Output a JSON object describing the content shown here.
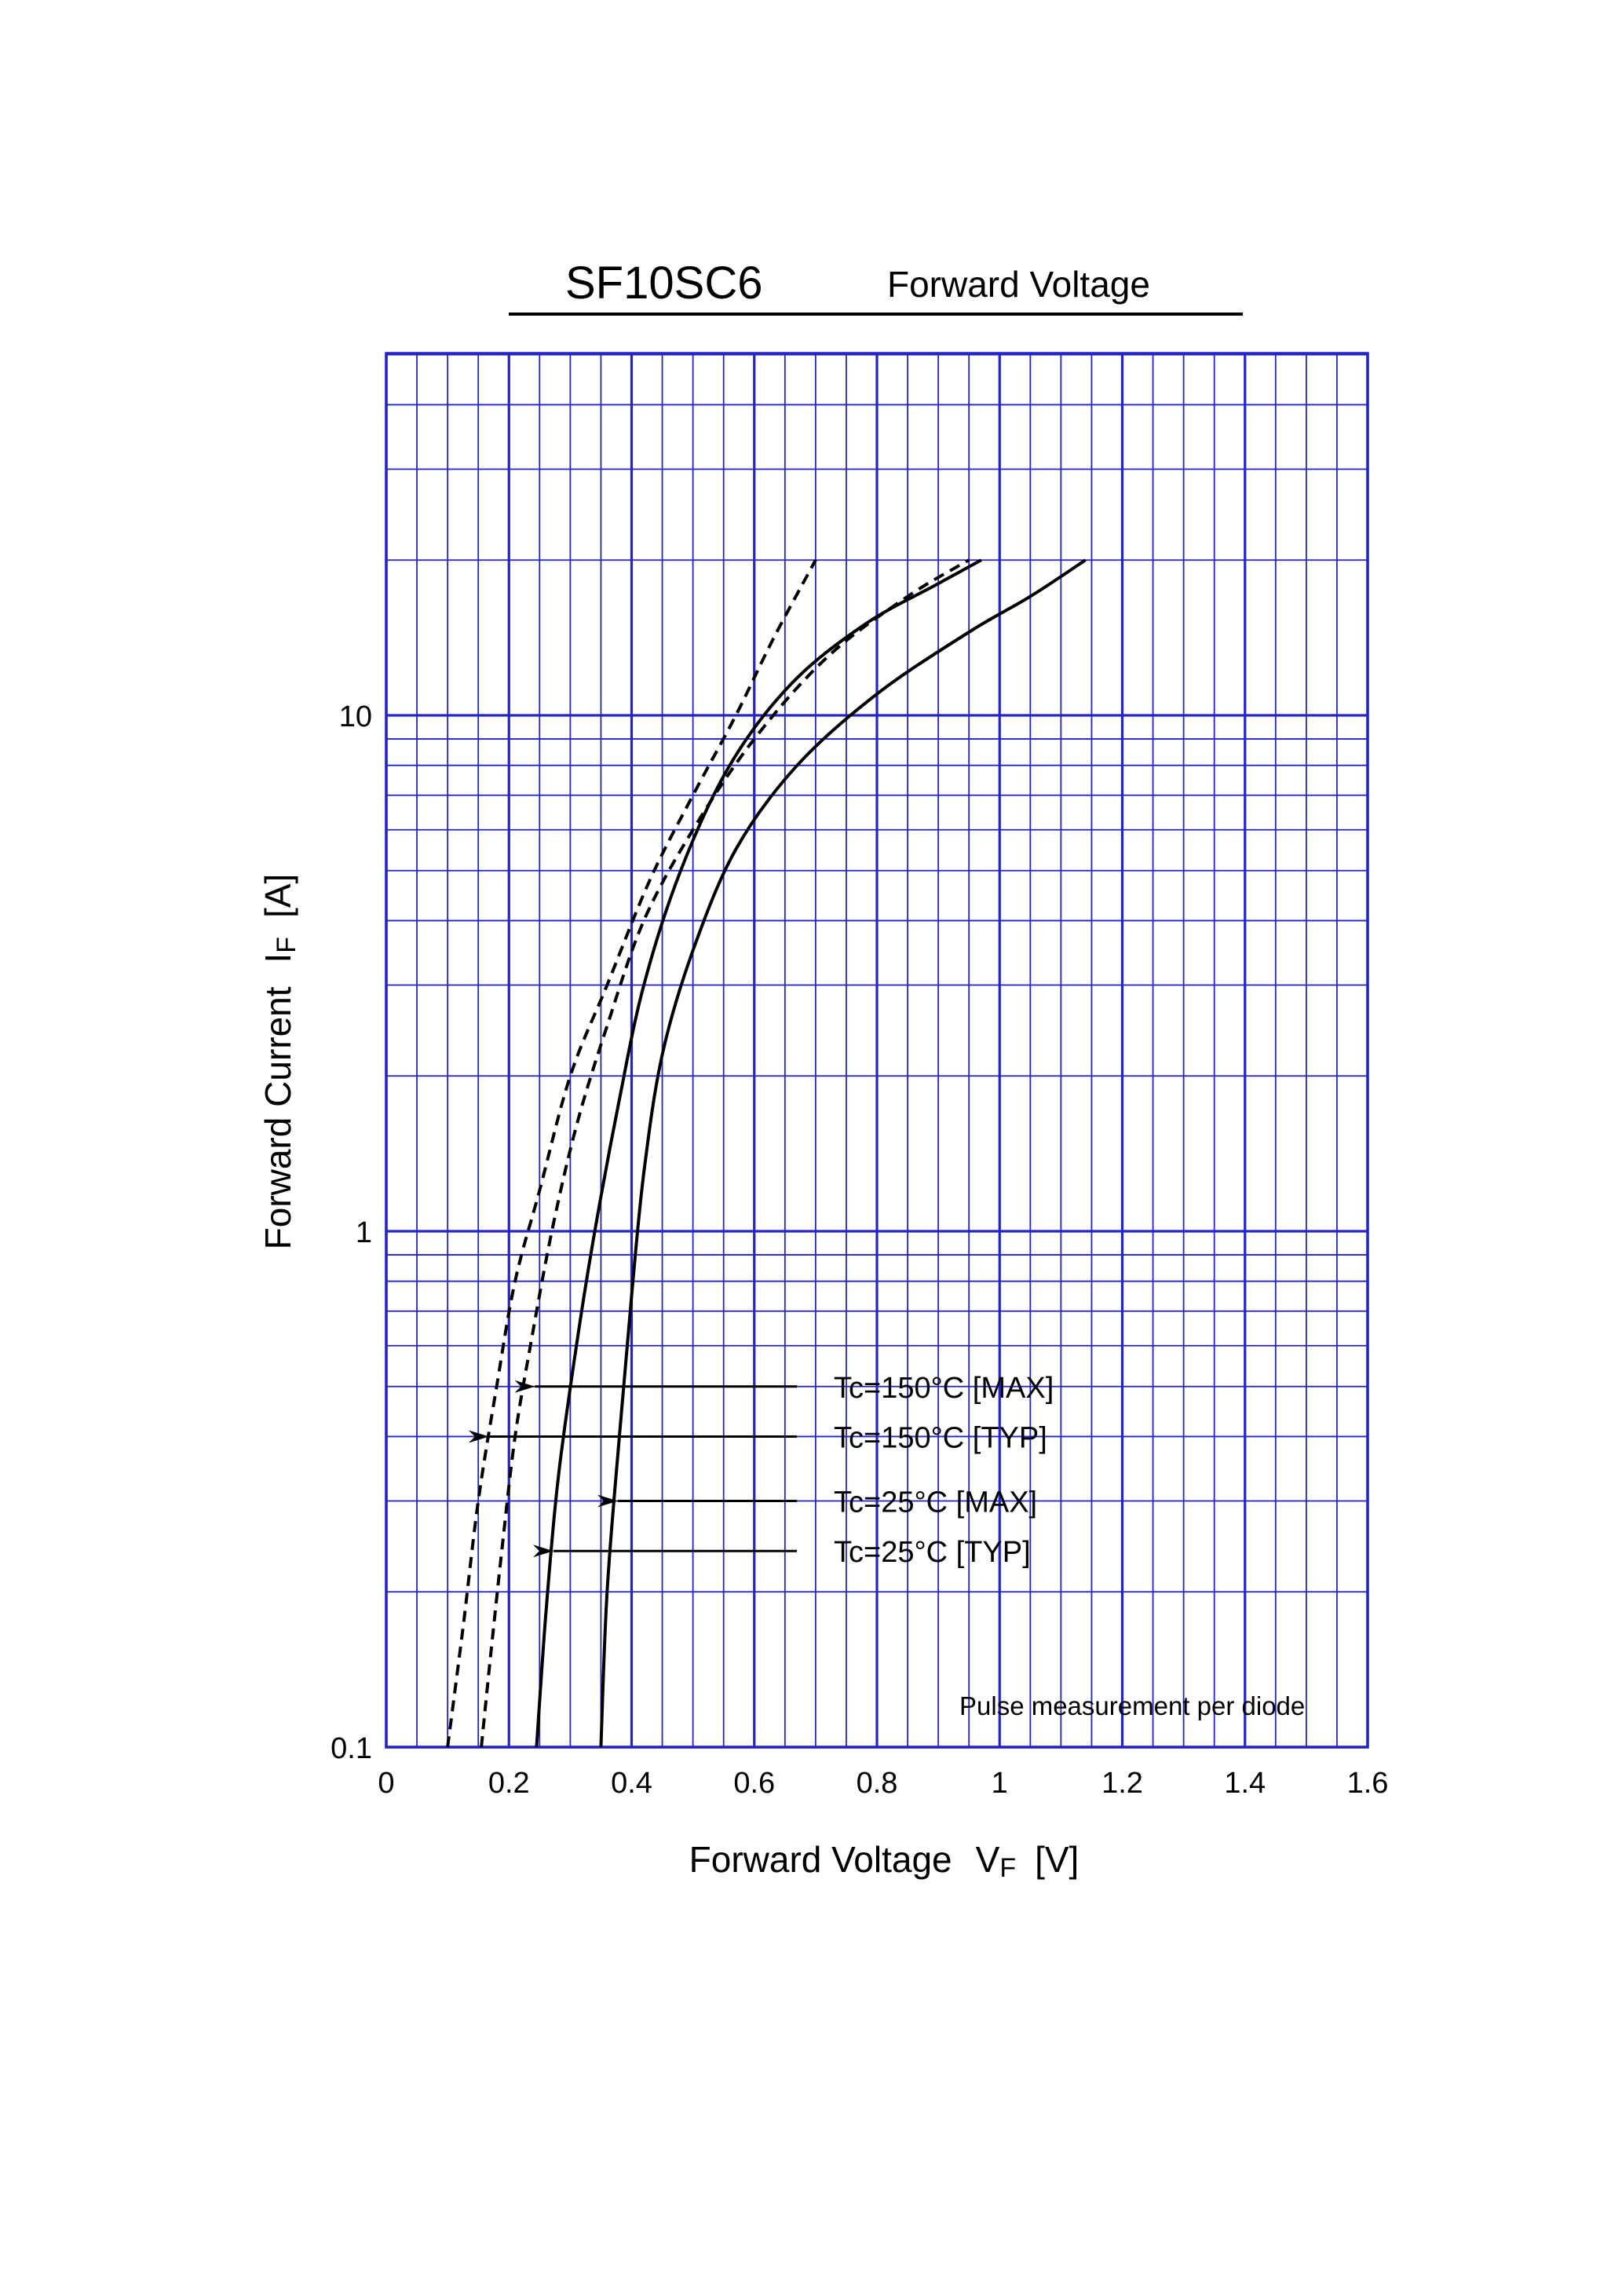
{
  "header": {
    "part_number": "SF10SC6",
    "subtitle": "Forward Voltage"
  },
  "axes": {
    "x_label": "Forward Voltage",
    "x_symbol": "V",
    "x_subscript": "F",
    "x_unit": "[V]",
    "y_label": "Forward Current",
    "y_symbol": "I",
    "y_subscript": "F",
    "y_unit": "[A]"
  },
  "note": "Pulse measurement per diode",
  "colors": {
    "grid": "#2323c8",
    "curve": "#000000"
  },
  "chart_data": {
    "type": "line",
    "title": "SF10SC6 Forward Voltage",
    "xlabel": "Forward Voltage VF [V]",
    "ylabel": "Forward Current IF [A]",
    "xlim": [
      0,
      1.6
    ],
    "ylim": [
      0.1,
      40
    ],
    "yscale": "log",
    "grid": true,
    "x_ticks": [
      "0",
      "0.2",
      "0.4",
      "0.6",
      "0.8",
      "1",
      "1.2",
      "1.4",
      "1.6"
    ],
    "y_ticks": [
      "0.1",
      "1",
      "10"
    ],
    "series": [
      {
        "name": "Tc=150°C [MAX]",
        "style": "dashed",
        "x": [
          0.155,
          0.17,
          0.19,
          0.21,
          0.235,
          0.27,
          0.31,
          0.36,
          0.42,
          0.5,
          0.6,
          0.72,
          0.85,
          0.95
        ],
        "y": [
          0.1,
          0.15,
          0.25,
          0.4,
          0.6,
          1.0,
          1.6,
          2.5,
          4.0,
          6.0,
          9.0,
          13.0,
          17.0,
          20.0
        ]
      },
      {
        "name": "Tc=150°C [TYP]",
        "style": "dashed",
        "x": [
          0.1,
          0.125,
          0.15,
          0.18,
          0.21,
          0.25,
          0.3,
          0.36,
          0.43,
          0.5,
          0.57,
          0.63,
          0.7
        ],
        "y": [
          0.1,
          0.17,
          0.3,
          0.5,
          0.8,
          1.2,
          2.0,
          3.0,
          4.8,
          7.0,
          10.0,
          14.0,
          20.0
        ]
      },
      {
        "name": "Tc=25°C [MAX]",
        "style": "solid",
        "x": [
          0.35,
          0.36,
          0.38,
          0.4,
          0.42,
          0.45,
          0.5,
          0.57,
          0.67,
          0.8,
          0.95,
          1.05,
          1.14
        ],
        "y": [
          0.1,
          0.2,
          0.4,
          0.75,
          1.3,
          2.2,
          3.5,
          5.5,
          8.0,
          11.0,
          14.5,
          17.0,
          20.0
        ]
      },
      {
        "name": "Tc=25°C [TYP]",
        "style": "solid",
        "x": [
          0.245,
          0.26,
          0.28,
          0.31,
          0.34,
          0.38,
          0.42,
          0.48,
          0.56,
          0.66,
          0.78,
          0.9,
          0.97
        ],
        "y": [
          0.1,
          0.18,
          0.33,
          0.6,
          1.0,
          1.8,
          3.0,
          5.0,
          8.0,
          11.5,
          15.0,
          18.0,
          20.0
        ]
      }
    ],
    "annotations": [
      {
        "label": "Tc=150°C [MAX]",
        "arrow_to": [
          0.24,
          0.5
        ]
      },
      {
        "label": "Tc=150°C [TYP]",
        "arrow_to": [
          0.165,
          0.4
        ]
      },
      {
        "label": "Tc=25°C [MAX]",
        "arrow_to": [
          0.375,
          0.3
        ]
      },
      {
        "label": "Tc=25°C [TYP]",
        "arrow_to": [
          0.27,
          0.24
        ]
      }
    ]
  }
}
